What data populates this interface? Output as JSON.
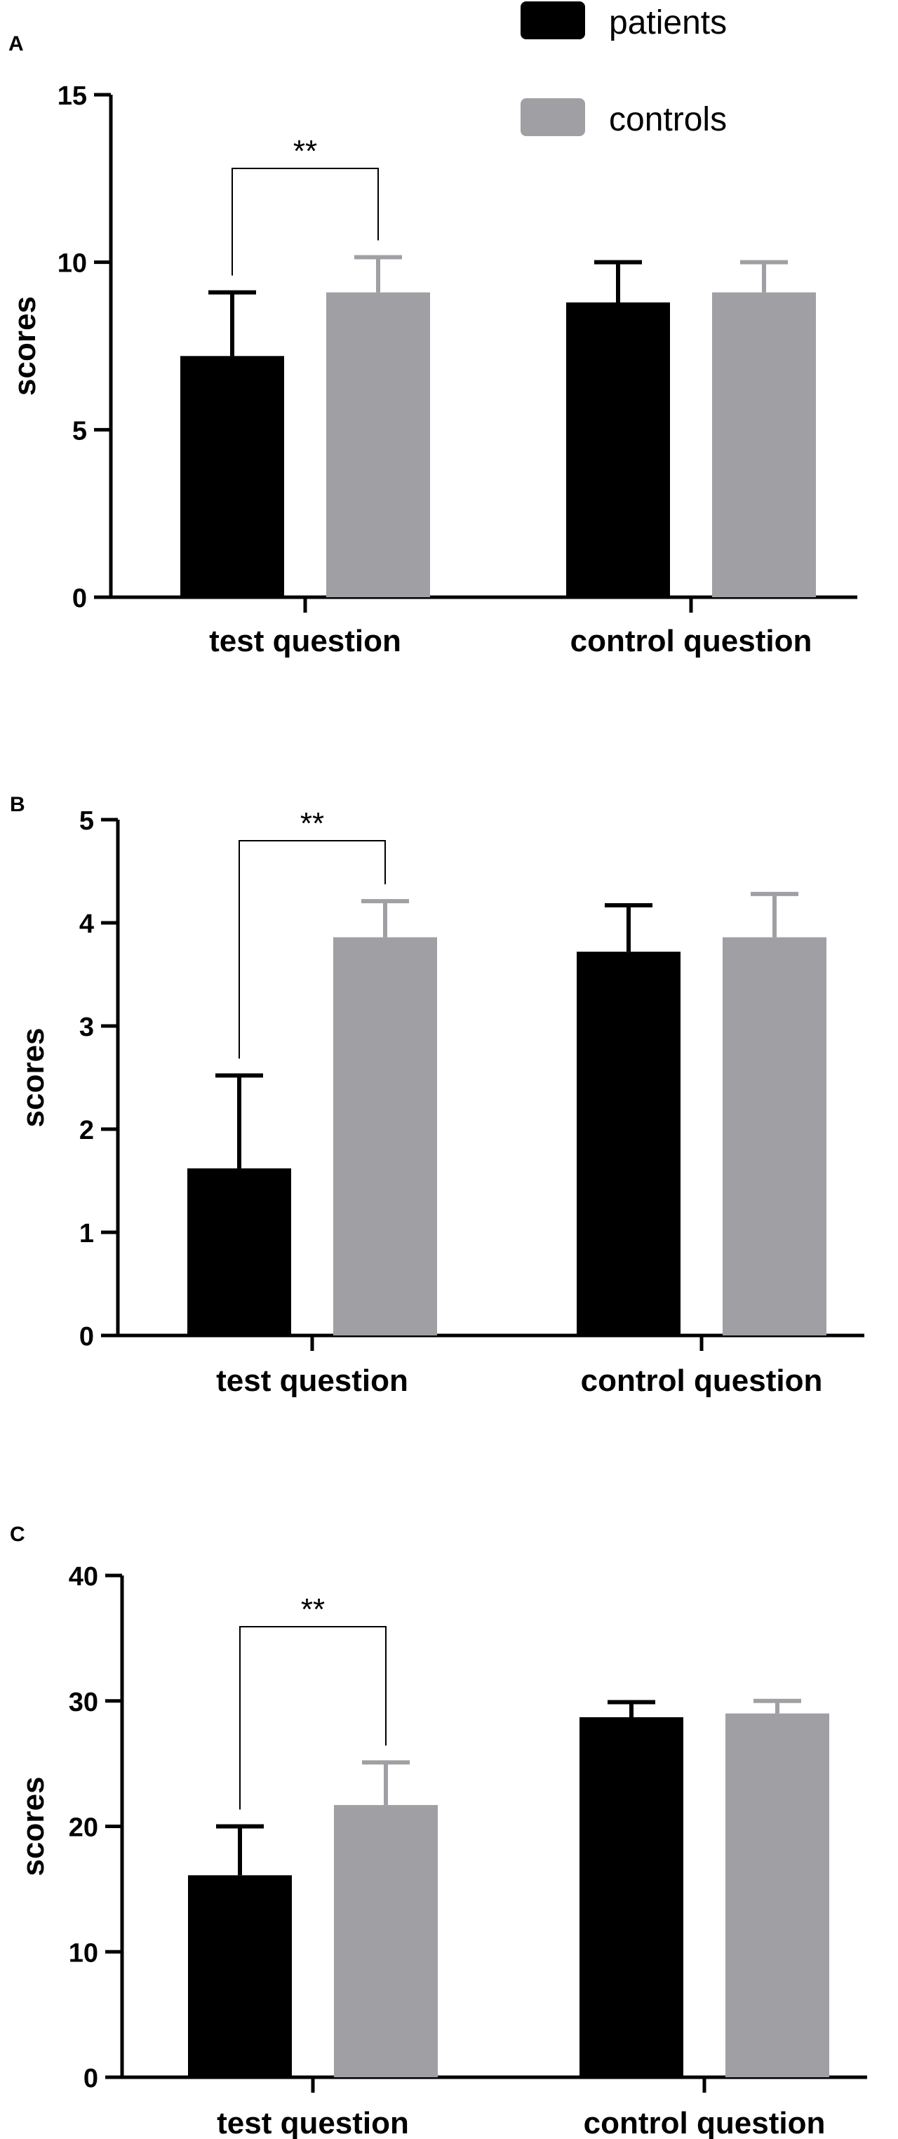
{
  "legend": [
    {
      "label": "patients",
      "color": "#000000"
    },
    {
      "label": "controls",
      "color": "#a0a0a4"
    }
  ],
  "chart_data": [
    {
      "panel": "A",
      "type": "bar",
      "ylabel": "scores",
      "ylim": [
        0,
        15
      ],
      "yticks": [
        0,
        5,
        10,
        15
      ],
      "categories": [
        "test question",
        "control question"
      ],
      "series": [
        {
          "name": "patients",
          "values": [
            7.2,
            8.8
          ],
          "errors": [
            1.9,
            1.2
          ]
        },
        {
          "name": "controls",
          "values": [
            9.1,
            9.1
          ],
          "errors": [
            1.05,
            0.9
          ]
        }
      ],
      "significance": {
        "label": "**",
        "category": 0
      }
    },
    {
      "panel": "B",
      "type": "bar",
      "ylabel": "scores",
      "ylim": [
        0,
        5
      ],
      "yticks": [
        0,
        1,
        2,
        3,
        4,
        5
      ],
      "categories": [
        "test question",
        "control question"
      ],
      "series": [
        {
          "name": "patients",
          "values": [
            1.62,
            3.72
          ],
          "errors": [
            0.9,
            0.45
          ]
        },
        {
          "name": "controls",
          "values": [
            3.86,
            3.86
          ],
          "errors": [
            0.35,
            0.42
          ]
        }
      ],
      "significance": {
        "label": "**",
        "category": 0
      }
    },
    {
      "panel": "C",
      "type": "bar",
      "ylabel": "scores",
      "ylim": [
        0,
        40
      ],
      "yticks": [
        0,
        10,
        20,
        30,
        40
      ],
      "categories": [
        "test question",
        "control question"
      ],
      "series": [
        {
          "name": "patients",
          "values": [
            16.1,
            28.7
          ],
          "errors": [
            3.9,
            1.2
          ]
        },
        {
          "name": "controls",
          "values": [
            21.7,
            29.0
          ],
          "errors": [
            3.4,
            1.0
          ]
        }
      ],
      "significance": {
        "label": "**",
        "category": 0
      }
    }
  ]
}
